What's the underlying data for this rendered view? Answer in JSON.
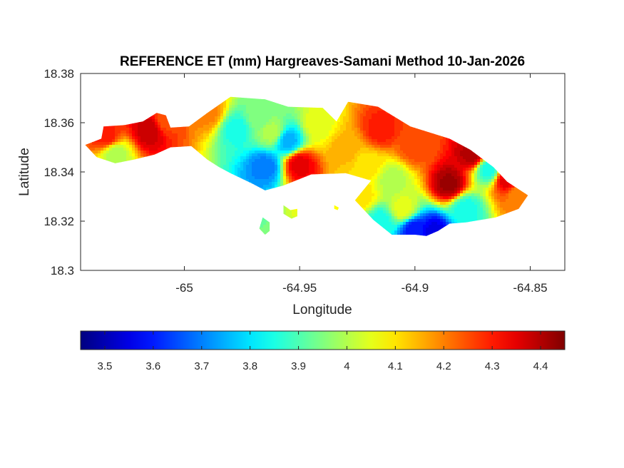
{
  "chart_data": {
    "type": "heatmap",
    "title": "REFERENCE ET (mm) Hargreaves-Samani Method  10-Jan-2026",
    "xlabel": "Longitude",
    "ylabel": "Latitude",
    "xlim": [
      -65.045,
      -64.835
    ],
    "ylim": [
      18.3,
      18.38
    ],
    "x_ticks": [
      "-65",
      "-64.95",
      "-64.9",
      "-64.85"
    ],
    "x_tick_values": [
      -65,
      -64.95,
      -64.9,
      -64.85
    ],
    "y_ticks": [
      "18.38",
      "18.36",
      "18.34",
      "18.32",
      "18.3"
    ],
    "y_tick_values": [
      18.38,
      18.36,
      18.34,
      18.32,
      18.3
    ],
    "colorbar": {
      "colormap": "jet",
      "range": [
        3.45,
        4.45
      ],
      "ticks": [
        "3.5",
        "3.6",
        "3.7",
        "3.8",
        "3.9",
        "4",
        "4.1",
        "4.2",
        "4.3",
        "4.4"
      ],
      "tick_values": [
        3.5,
        3.6,
        3.7,
        3.8,
        3.9,
        4.0,
        4.1,
        4.2,
        4.3,
        4.4
      ],
      "colors": [
        "#00008f",
        "#0000ff",
        "#0080ff",
        "#00ffff",
        "#80ff80",
        "#ffff00",
        "#ff8000",
        "#ff0000",
        "#800000"
      ]
    },
    "island_outline": [
      [
        -65.043,
        18.351
      ],
      [
        -65.036,
        18.3535
      ],
      [
        -65.035,
        18.3585
      ],
      [
        -65.026,
        18.359
      ],
      [
        -65.018,
        18.3605
      ],
      [
        -65.012,
        18.364
      ],
      [
        -65.008,
        18.363
      ],
      [
        -65.006,
        18.358
      ],
      [
        -64.998,
        18.3585
      ],
      [
        -64.99,
        18.364
      ],
      [
        -64.98,
        18.3705
      ],
      [
        -64.965,
        18.3695
      ],
      [
        -64.955,
        18.3665
      ],
      [
        -64.94,
        18.366
      ],
      [
        -64.934,
        18.3605
      ],
      [
        -64.929,
        18.3685
      ],
      [
        -64.916,
        18.3665
      ],
      [
        -64.902,
        18.3585
      ],
      [
        -64.885,
        18.3535
      ],
      [
        -64.876,
        18.349
      ],
      [
        -64.866,
        18.342
      ],
      [
        -64.86,
        18.336
      ],
      [
        -64.851,
        18.3305
      ],
      [
        -64.855,
        18.325
      ],
      [
        -64.865,
        18.3215
      ],
      [
        -64.878,
        18.3195
      ],
      [
        -64.885,
        18.319
      ],
      [
        -64.89,
        18.316
      ],
      [
        -64.895,
        18.314
      ],
      [
        -64.9,
        18.3145
      ],
      [
        -64.91,
        18.3145
      ],
      [
        -64.918,
        18.3205
      ],
      [
        -64.926,
        18.3285
      ],
      [
        -64.919,
        18.3365
      ],
      [
        -64.93,
        18.3395
      ],
      [
        -64.945,
        18.339
      ],
      [
        -64.957,
        18.3345
      ],
      [
        -64.965,
        18.3325
      ],
      [
        -64.97,
        18.335
      ],
      [
        -64.98,
        18.3395
      ],
      [
        -64.985,
        18.342
      ],
      [
        -64.99,
        18.345
      ],
      [
        -64.997,
        18.3505
      ],
      [
        -65.006,
        18.35
      ],
      [
        -65.013,
        18.347
      ],
      [
        -65.022,
        18.345
      ],
      [
        -65.03,
        18.3435
      ],
      [
        -65.038,
        18.346
      ],
      [
        -65.043,
        18.351
      ]
    ],
    "islets": [
      [
        [
          -64.957,
          18.3265
        ],
        [
          -64.954,
          18.3245
        ],
        [
          -64.951,
          18.325
        ],
        [
          -64.951,
          18.322
        ],
        [
          -64.9535,
          18.321
        ],
        [
          -64.957,
          18.323
        ]
      ],
      [
        [
          -64.966,
          18.3215
        ],
        [
          -64.963,
          18.3195
        ],
        [
          -64.963,
          18.316
        ],
        [
          -64.965,
          18.3145
        ],
        [
          -64.9675,
          18.317
        ]
      ],
      [
        [
          -64.935,
          18.3265
        ],
        [
          -64.933,
          18.3255
        ],
        [
          -64.9335,
          18.3245
        ],
        [
          -64.935,
          18.325
        ]
      ]
    ],
    "field_anchors": [
      {
        "lon": -65.034,
        "lat": 18.3545,
        "value": 4.3
      },
      {
        "lon": -65.015,
        "lat": 18.357,
        "value": 4.38
      },
      {
        "lon": -65.03,
        "lat": 18.347,
        "value": 4.0
      },
      {
        "lon": -65.008,
        "lat": 18.361,
        "value": 4.25
      },
      {
        "lon": -64.99,
        "lat": 18.3645,
        "value": 4.2
      },
      {
        "lon": -64.977,
        "lat": 18.3575,
        "value": 3.85
      },
      {
        "lon": -64.968,
        "lat": 18.362,
        "value": 3.95
      },
      {
        "lon": -64.955,
        "lat": 18.3525,
        "value": 3.75
      },
      {
        "lon": -64.962,
        "lat": 18.356,
        "value": 4.0
      },
      {
        "lon": -64.942,
        "lat": 18.359,
        "value": 4.05
      },
      {
        "lon": -64.965,
        "lat": 18.342,
        "value": 3.7
      },
      {
        "lon": -64.95,
        "lat": 18.343,
        "value": 4.35
      },
      {
        "lon": -64.93,
        "lat": 18.35,
        "value": 4.15
      },
      {
        "lon": -64.915,
        "lat": 18.357,
        "value": 4.3
      },
      {
        "lon": -64.92,
        "lat": 18.343,
        "value": 4.1
      },
      {
        "lon": -64.91,
        "lat": 18.337,
        "value": 4.0
      },
      {
        "lon": -64.9,
        "lat": 18.35,
        "value": 4.25
      },
      {
        "lon": -64.885,
        "lat": 18.335,
        "value": 4.42
      },
      {
        "lon": -64.875,
        "lat": 18.347,
        "value": 4.4
      },
      {
        "lon": -64.868,
        "lat": 18.341,
        "value": 3.85
      },
      {
        "lon": -64.86,
        "lat": 18.337,
        "value": 4.35
      },
      {
        "lon": -64.878,
        "lat": 18.325,
        "value": 3.85
      },
      {
        "lon": -64.905,
        "lat": 18.325,
        "value": 4.05
      },
      {
        "lon": -64.915,
        "lat": 18.32,
        "value": 3.85
      },
      {
        "lon": -64.9,
        "lat": 18.3165,
        "value": 3.6
      },
      {
        "lon": -64.892,
        "lat": 18.3155,
        "value": 3.55
      },
      {
        "lon": -64.923,
        "lat": 18.33,
        "value": 4.1
      },
      {
        "lon": -64.855,
        "lat": 18.3305,
        "value": 4.2
      }
    ]
  }
}
